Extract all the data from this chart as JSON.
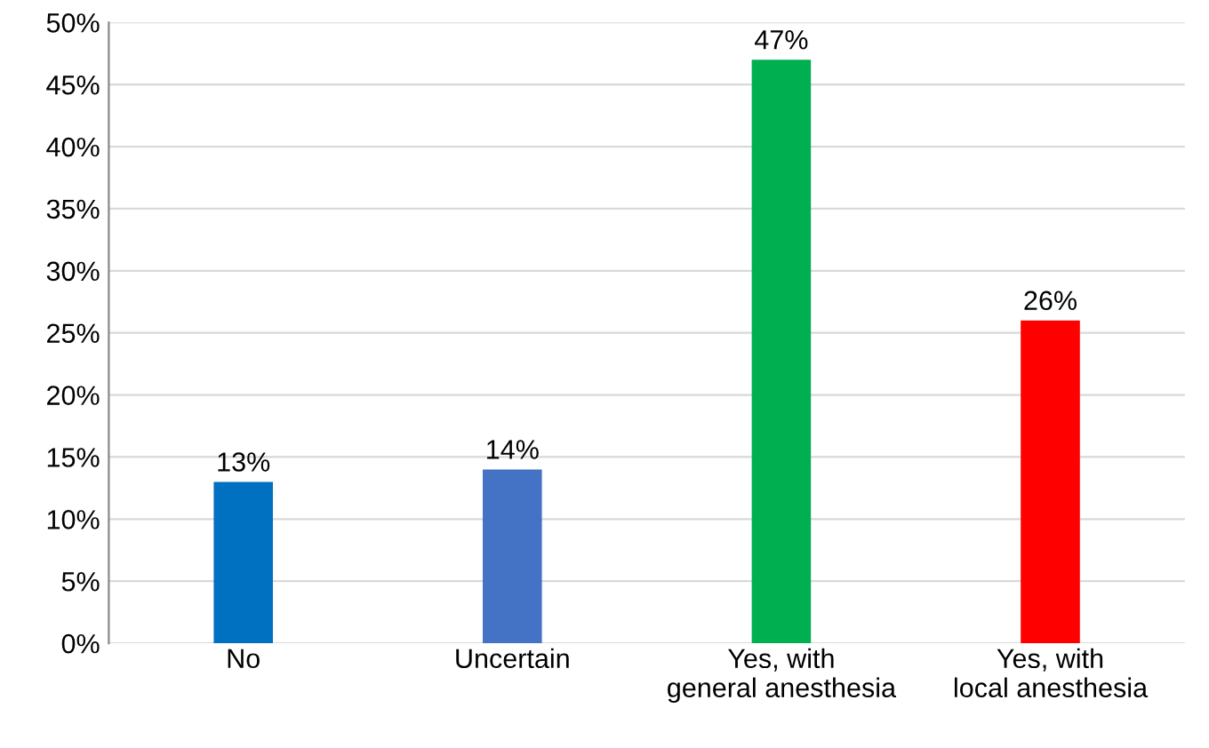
{
  "chart_data": {
    "type": "bar",
    "categories": [
      "No",
      "Uncertain",
      "Yes, with\ngeneral anesthesia",
      "Yes, with\nlocal anesthesia"
    ],
    "values": [
      13,
      14,
      47,
      26
    ],
    "colors": [
      "#0070c0",
      "#4472c4",
      "#00b050",
      "#ff0000"
    ],
    "value_labels": [
      "13%",
      "14%",
      "47%",
      "26%"
    ],
    "ylim": [
      0,
      50
    ],
    "yticks": [
      {
        "value": 0,
        "label": "0%"
      },
      {
        "value": 5,
        "label": "5%"
      },
      {
        "value": 10,
        "label": "10%"
      },
      {
        "value": 15,
        "label": "15%"
      },
      {
        "value": 20,
        "label": "20%"
      },
      {
        "value": 25,
        "label": "25%"
      },
      {
        "value": 30,
        "label": "30%"
      },
      {
        "value": 35,
        "label": "35%"
      },
      {
        "value": 40,
        "label": "40%"
      },
      {
        "value": 45,
        "label": "45%"
      },
      {
        "value": 50,
        "label": "50%"
      }
    ],
    "grid": "y"
  }
}
